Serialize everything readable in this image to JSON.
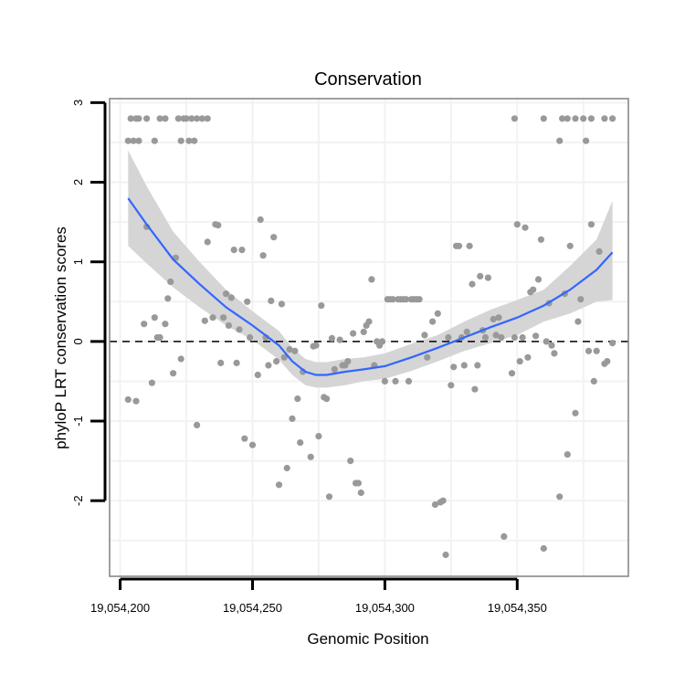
{
  "chart_data": {
    "type": "scatter",
    "title": "Conservation",
    "xlabel": "Genomic Position",
    "ylabel": "phyloP LRT conservation scores",
    "xlim": [
      19054196,
      19054392
    ],
    "ylim": [
      -2.95,
      3.05
    ],
    "x_ticks": [
      19054200,
      19054250,
      19054300,
      19054350
    ],
    "x_tick_labels": [
      "19,054,200",
      "19,054,250",
      "19,054,300",
      "19,054,350"
    ],
    "y_ticks": [
      -2,
      -1,
      0,
      1,
      2,
      3
    ],
    "y_tick_labels": [
      "-2",
      "-1",
      "0",
      "1",
      "2",
      "3"
    ],
    "grid": true,
    "reference_line": {
      "y": 0,
      "style": "dashed"
    },
    "colors": {
      "points": "#999999",
      "smooth": "#3366ff",
      "ribbon": "#d3d3d3",
      "grid": "#f2f2f2",
      "panel_border": "#808080"
    },
    "series": [
      {
        "name": "scores",
        "kind": "points",
        "points": [
          [
            19054203,
            2.52
          ],
          [
            19054204,
            2.8
          ],
          [
            19054205,
            2.52
          ],
          [
            19054206,
            2.8
          ],
          [
            19054207,
            2.52
          ],
          [
            19054207,
            2.8
          ],
          [
            19054210,
            2.8
          ],
          [
            19054213,
            2.52
          ],
          [
            19054215,
            2.8
          ],
          [
            19054217,
            2.8
          ],
          [
            19054222,
            2.8
          ],
          [
            19054223,
            2.52
          ],
          [
            19054224,
            2.8
          ],
          [
            19054225,
            2.8
          ],
          [
            19054226,
            2.52
          ],
          [
            19054227,
            2.8
          ],
          [
            19054228,
            2.52
          ],
          [
            19054229,
            2.8
          ],
          [
            19054231,
            2.8
          ],
          [
            19054233,
            2.8
          ],
          [
            19054349,
            2.8
          ],
          [
            19054360,
            2.8
          ],
          [
            19054366,
            2.52
          ],
          [
            19054367,
            2.8
          ],
          [
            19054369,
            2.8
          ],
          [
            19054372,
            2.8
          ],
          [
            19054375,
            2.8
          ],
          [
            19054376,
            2.52
          ],
          [
            19054378,
            2.8
          ],
          [
            19054383,
            2.8
          ],
          [
            19054386,
            2.8
          ],
          [
            19054203,
            -0.73
          ],
          [
            19054206,
            -0.75
          ],
          [
            19054209,
            0.22
          ],
          [
            19054210,
            1.44
          ],
          [
            19054212,
            -0.52
          ],
          [
            19054213,
            0.3
          ],
          [
            19054214,
            0.05
          ],
          [
            19054215,
            0.05
          ],
          [
            19054217,
            0.22
          ],
          [
            19054218,
            0.54
          ],
          [
            19054219,
            0.75
          ],
          [
            19054220,
            -0.4
          ],
          [
            19054221,
            1.05
          ],
          [
            19054223,
            -0.22
          ],
          [
            19054229,
            -1.05
          ],
          [
            19054232,
            0.26
          ],
          [
            19054233,
            1.25
          ],
          [
            19054235,
            0.3
          ],
          [
            19054236,
            1.47
          ],
          [
            19054237,
            1.46
          ],
          [
            19054238,
            -0.27
          ],
          [
            19054239,
            0.3
          ],
          [
            19054240,
            0.6
          ],
          [
            19054241,
            0.2
          ],
          [
            19054242,
            0.55
          ],
          [
            19054243,
            1.15
          ],
          [
            19054244,
            -0.27
          ],
          [
            19054245,
            0.15
          ],
          [
            19054246,
            1.15
          ],
          [
            19054247,
            -1.22
          ],
          [
            19054248,
            0.5
          ],
          [
            19054249,
            0.05
          ],
          [
            19054250,
            -1.3
          ],
          [
            19054252,
            -0.42
          ],
          [
            19054253,
            1.53
          ],
          [
            19054254,
            1.08
          ],
          [
            19054255,
            0.05
          ],
          [
            19054256,
            -0.3
          ],
          [
            19054257,
            0.51
          ],
          [
            19054258,
            1.31
          ],
          [
            19054259,
            -0.25
          ],
          [
            19054260,
            -1.8
          ],
          [
            19054261,
            0.47
          ],
          [
            19054262,
            -0.2
          ],
          [
            19054263,
            -1.59
          ],
          [
            19054264,
            -0.1
          ],
          [
            19054265,
            -0.97
          ],
          [
            19054266,
            -0.12
          ],
          [
            19054267,
            -0.72
          ],
          [
            19054268,
            -1.27
          ],
          [
            19054269,
            -0.38
          ],
          [
            19054272,
            -1.45
          ],
          [
            19054273,
            -0.06
          ],
          [
            19054274,
            -0.05
          ],
          [
            19054275,
            -1.19
          ],
          [
            19054276,
            0.45
          ],
          [
            19054277,
            -0.7
          ],
          [
            19054278,
            -0.72
          ],
          [
            19054279,
            -1.95
          ],
          [
            19054280,
            0.04
          ],
          [
            19054281,
            -0.35
          ],
          [
            19054283,
            0.02
          ],
          [
            19054284,
            -0.3
          ],
          [
            19054285,
            -0.3
          ],
          [
            19054286,
            -0.25
          ],
          [
            19054287,
            -1.5
          ],
          [
            19054288,
            0.1
          ],
          [
            19054289,
            -1.78
          ],
          [
            19054290,
            -1.78
          ],
          [
            19054291,
            -1.9
          ],
          [
            19054292,
            0.12
          ],
          [
            19054293,
            0.2
          ],
          [
            19054294,
            0.25
          ],
          [
            19054295,
            0.78
          ],
          [
            19054296,
            -0.3
          ],
          [
            19054297,
            0.0
          ],
          [
            19054298,
            -0.05
          ],
          [
            19054299,
            0.0
          ],
          [
            19054300,
            -0.5
          ],
          [
            19054301,
            0.53
          ],
          [
            19054302,
            0.53
          ],
          [
            19054303,
            0.53
          ],
          [
            19054304,
            -0.5
          ],
          [
            19054305,
            0.53
          ],
          [
            19054306,
            0.53
          ],
          [
            19054307,
            0.53
          ],
          [
            19054308,
            0.53
          ],
          [
            19054309,
            -0.5
          ],
          [
            19054310,
            0.53
          ],
          [
            19054311,
            0.53
          ],
          [
            19054312,
            0.53
          ],
          [
            19054313,
            0.53
          ],
          [
            19054315,
            0.08
          ],
          [
            19054316,
            -0.2
          ],
          [
            19054318,
            0.25
          ],
          [
            19054319,
            -2.05
          ],
          [
            19054320,
            0.35
          ],
          [
            19054321,
            -2.02
          ],
          [
            19054322,
            -2.0
          ],
          [
            19054323,
            -2.68
          ],
          [
            19054324,
            0.05
          ],
          [
            19054325,
            -0.55
          ],
          [
            19054326,
            -0.32
          ],
          [
            19054327,
            1.2
          ],
          [
            19054328,
            1.2
          ],
          [
            19054329,
            0.05
          ],
          [
            19054330,
            -0.3
          ],
          [
            19054331,
            0.12
          ],
          [
            19054332,
            1.2
          ],
          [
            19054333,
            0.72
          ],
          [
            19054334,
            -0.6
          ],
          [
            19054335,
            -0.3
          ],
          [
            19054336,
            0.82
          ],
          [
            19054337,
            0.14
          ],
          [
            19054338,
            0.05
          ],
          [
            19054339,
            0.8
          ],
          [
            19054341,
            0.28
          ],
          [
            19054342,
            0.08
          ],
          [
            19054343,
            0.3
          ],
          [
            19054344,
            0.05
          ],
          [
            19054345,
            -2.45
          ],
          [
            19054348,
            -0.4
          ],
          [
            19054349,
            0.05
          ],
          [
            19054350,
            1.47
          ],
          [
            19054351,
            -0.25
          ],
          [
            19054352,
            0.05
          ],
          [
            19054353,
            1.43
          ],
          [
            19054354,
            -0.2
          ],
          [
            19054355,
            0.62
          ],
          [
            19054356,
            0.65
          ],
          [
            19054357,
            0.07
          ],
          [
            19054358,
            0.78
          ],
          [
            19054359,
            1.28
          ],
          [
            19054360,
            -2.6
          ],
          [
            19054361,
            0.0
          ],
          [
            19054362,
            0.48
          ],
          [
            19054363,
            -0.05
          ],
          [
            19054364,
            -0.15
          ],
          [
            19054366,
            -1.95
          ],
          [
            19054368,
            0.6
          ],
          [
            19054369,
            -1.42
          ],
          [
            19054370,
            1.2
          ],
          [
            19054372,
            -0.9
          ],
          [
            19054373,
            0.25
          ],
          [
            19054374,
            0.53
          ],
          [
            19054377,
            -0.12
          ],
          [
            19054378,
            1.47
          ],
          [
            19054379,
            -0.5
          ],
          [
            19054380,
            -0.12
          ],
          [
            19054381,
            1.13
          ],
          [
            19054383,
            -0.28
          ],
          [
            19054384,
            -0.25
          ],
          [
            19054386,
            -0.02
          ]
        ]
      },
      {
        "name": "loess fit",
        "kind": "smooth",
        "points": [
          [
            19054203,
            1.8
          ],
          [
            19054210,
            1.47
          ],
          [
            19054220,
            1.03
          ],
          [
            19054230,
            0.72
          ],
          [
            19054240,
            0.43
          ],
          [
            19054250,
            0.2
          ],
          [
            19054260,
            -0.05
          ],
          [
            19054265,
            -0.25
          ],
          [
            19054270,
            -0.38
          ],
          [
            19054274,
            -0.42
          ],
          [
            19054278,
            -0.42
          ],
          [
            19054285,
            -0.38
          ],
          [
            19054292,
            -0.35
          ],
          [
            19054300,
            -0.31
          ],
          [
            19054310,
            -0.2
          ],
          [
            19054320,
            -0.08
          ],
          [
            19054330,
            0.05
          ],
          [
            19054340,
            0.18
          ],
          [
            19054350,
            0.3
          ],
          [
            19054360,
            0.45
          ],
          [
            19054370,
            0.65
          ],
          [
            19054380,
            0.9
          ],
          [
            19054386,
            1.12
          ]
        ],
        "upper": [
          2.4,
          1.95,
          1.38,
          1.0,
          0.65,
          0.38,
          0.13,
          -0.08,
          -0.22,
          -0.26,
          -0.26,
          -0.22,
          -0.2,
          -0.15,
          -0.03,
          0.08,
          0.25,
          0.4,
          0.52,
          0.65,
          0.95,
          1.28,
          1.77
        ],
        "lower": [
          1.2,
          0.98,
          0.68,
          0.43,
          0.2,
          0.02,
          -0.23,
          -0.42,
          -0.55,
          -0.58,
          -0.58,
          -0.55,
          -0.5,
          -0.47,
          -0.37,
          -0.25,
          -0.12,
          -0.02,
          0.08,
          0.25,
          0.35,
          0.5,
          0.52
        ]
      }
    ]
  }
}
